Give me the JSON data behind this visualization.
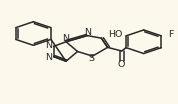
{
  "bg_color": "#fdf8ec",
  "line_color": "#2a2a2a",
  "lw": 1.1,
  "fs": 6.8,
  "xlim": [
    0.0,
    1.0
  ],
  "ylim": [
    0.0,
    1.0
  ]
}
